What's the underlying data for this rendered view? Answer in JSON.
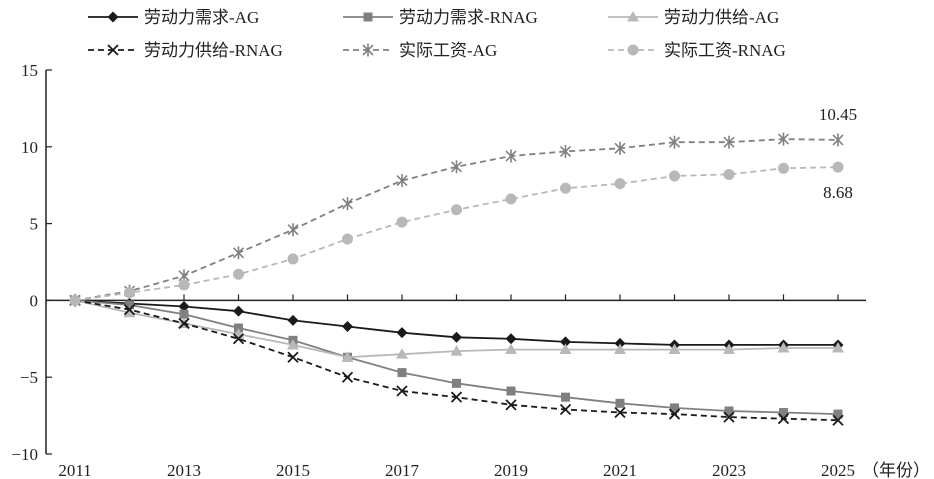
{
  "chart_data": {
    "type": "line",
    "x_unit": "（年份）",
    "x": [
      2011,
      2012,
      2013,
      2014,
      2015,
      2016,
      2017,
      2018,
      2019,
      2020,
      2021,
      2022,
      2023,
      2024,
      2025
    ],
    "x_ticks": [
      2011,
      2013,
      2015,
      2017,
      2019,
      2021,
      2023,
      2025
    ],
    "ylim": [
      -10,
      15
    ],
    "y_ticks": [
      -10,
      -5,
      0,
      5,
      10,
      15
    ],
    "legend_position": "top",
    "series": [
      {
        "name": "劳动力需求-AG",
        "color": "#1a1a1a",
        "dash": "solid",
        "marker": "diamond",
        "values": [
          0,
          -0.2,
          -0.4,
          -0.7,
          -1.3,
          -1.7,
          -2.1,
          -2.4,
          -2.5,
          -2.7,
          -2.8,
          -2.9,
          -2.9,
          -2.9,
          -2.9
        ]
      },
      {
        "name": "劳动力需求-RNAG",
        "color": "#808080",
        "dash": "solid",
        "marker": "square",
        "values": [
          0,
          -0.3,
          -0.9,
          -1.8,
          -2.6,
          -3.7,
          -4.7,
          -5.4,
          -5.9,
          -6.3,
          -6.7,
          -7.0,
          -7.2,
          -7.3,
          -7.4
        ]
      },
      {
        "name": "劳动力供给-AG",
        "color": "#b8b8b8",
        "dash": "solid",
        "marker": "triangle",
        "values": [
          0,
          -0.8,
          -1.5,
          -2.2,
          -2.9,
          -3.7,
          -3.5,
          -3.3,
          -3.2,
          -3.2,
          -3.2,
          -3.2,
          -3.2,
          -3.1,
          -3.1
        ]
      },
      {
        "name": "劳动力供给-RNAG",
        "color": "#1a1a1a",
        "dash": "dash",
        "marker": "x",
        "values": [
          0,
          -0.6,
          -1.5,
          -2.5,
          -3.7,
          -5.0,
          -5.9,
          -6.3,
          -6.8,
          -7.1,
          -7.3,
          -7.4,
          -7.6,
          -7.7,
          -7.8
        ]
      },
      {
        "name": "实际工资-AG",
        "color": "#808080",
        "dash": "dash",
        "marker": "star",
        "values": [
          0,
          0.6,
          1.6,
          3.1,
          4.6,
          6.3,
          7.8,
          8.7,
          9.4,
          9.7,
          9.9,
          10.3,
          10.3,
          10.5,
          10.45
        ]
      },
      {
        "name": "实际工资-RNAG",
        "color": "#b8b8b8",
        "dash": "dash",
        "marker": "circle",
        "values": [
          0,
          0.5,
          1.0,
          1.7,
          2.7,
          4.0,
          5.1,
          5.9,
          6.6,
          7.3,
          7.6,
          8.1,
          8.2,
          8.6,
          8.68
        ]
      }
    ],
    "annotations": [
      {
        "text": "10.45",
        "series_index": 4
      },
      {
        "text": "8.68",
        "series_index": 5
      }
    ]
  }
}
